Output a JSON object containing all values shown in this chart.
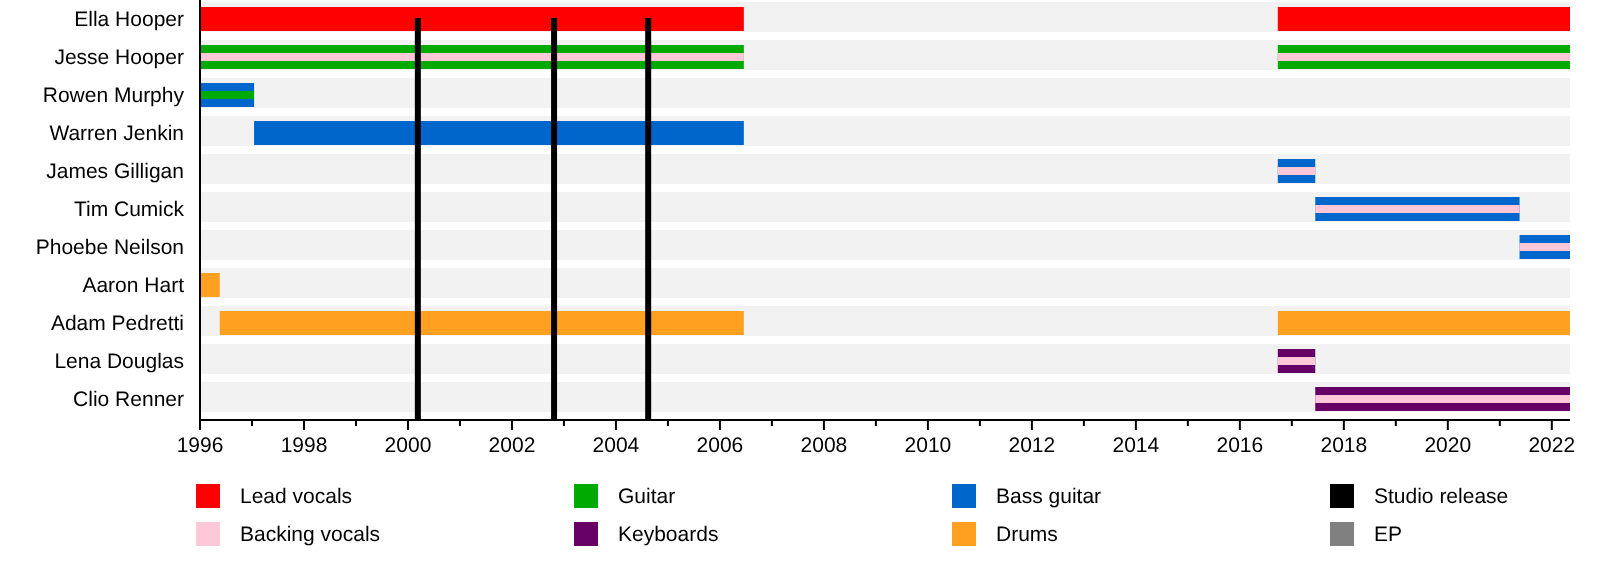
{
  "chart_data": {
    "type": "bar",
    "orientation": "horizontal",
    "categories": [
      "Ella Hooper",
      "Jesse Hooper",
      "Rowen Murphy",
      "Warren Jenkin",
      "James Gilligan",
      "Tim Cumick",
      "Phoebe Neilson",
      "Aaron Hart",
      "Adam Pedretti",
      "Lena Douglas",
      "Clio Renner"
    ],
    "series": [
      {
        "name": "Lead vocals",
        "color": "#ff0000",
        "base": [
          1996,
          null,
          null,
          null,
          null,
          null,
          null,
          null,
          null,
          null,
          null
        ],
        "values": [
          10.46,
          null,
          null,
          null,
          null,
          null,
          null,
          null,
          null,
          null,
          null
        ]
      },
      {
        "name": "Backing vocals",
        "color": "#ffc8d8",
        "base": [
          null,
          1996,
          null,
          null,
          2016.73,
          2017.45,
          2021.38,
          null,
          null,
          2016.73,
          2017.45
        ],
        "values": [
          null,
          10.46,
          null,
          null,
          0.72,
          3.93,
          0.97,
          null,
          null,
          0.72,
          4.9
        ]
      },
      {
        "name": "Guitar",
        "color": "#00aa00",
        "base": [
          null,
          1996,
          1996,
          null,
          null,
          null,
          null,
          null,
          null,
          null,
          null
        ],
        "values": [
          null,
          10.46,
          1.04,
          null,
          null,
          null,
          null,
          null,
          null,
          null,
          null
        ]
      },
      {
        "name": "Keyboards",
        "color": "#660066",
        "base": [
          null,
          null,
          null,
          null,
          null,
          null,
          null,
          null,
          null,
          2016.73,
          2017.45
        ],
        "values": [
          null,
          null,
          null,
          null,
          null,
          null,
          null,
          null,
          null,
          0.72,
          4.9
        ]
      },
      {
        "name": "Bass guitar",
        "color": "#0066cc",
        "base": [
          null,
          null,
          1996,
          1997.04,
          2016.73,
          2017.45,
          2021.38,
          null,
          null,
          null,
          null
        ],
        "values": [
          null,
          null,
          1.04,
          9.42,
          0.72,
          3.93,
          0.97,
          null,
          null,
          null,
          null
        ]
      },
      {
        "name": "Drums",
        "color": "#ffa020",
        "base": [
          null,
          null,
          null,
          null,
          null,
          null,
          null,
          1996,
          1996.38,
          null,
          null
        ],
        "values": [
          null,
          null,
          null,
          null,
          null,
          null,
          null,
          0.38,
          10.08,
          null,
          null
        ]
      },
      {
        "name": "EP",
        "color": "#808080",
        "base": [
          null,
          null,
          null,
          null,
          null,
          null,
          null,
          null,
          null,
          null,
          null
        ],
        "values": [
          null,
          null,
          null,
          null,
          null,
          null,
          null,
          null,
          null,
          null,
          null
        ]
      },
      {
        "color": "#ffc8d8",
        "base": [
          null,
          2016.73,
          null,
          null,
          null,
          null,
          null,
          null,
          null,
          null,
          null
        ],
        "values": [
          null,
          5.62,
          null,
          null,
          null,
          null,
          null,
          null,
          null,
          null,
          null
        ]
      },
      {
        "color": "#ff0000",
        "base": [
          2016.73,
          null,
          null,
          null,
          null,
          null,
          null,
          null,
          null,
          null,
          null
        ],
        "values": [
          5.62,
          null,
          null,
          null,
          null,
          null,
          null,
          null,
          null,
          null,
          null
        ]
      },
      {
        "color": "#00aa00",
        "base": [
          null,
          2016.73,
          null,
          null,
          null,
          null,
          null,
          null,
          null,
          null,
          null
        ],
        "values": [
          null,
          5.62,
          null,
          null,
          null,
          null,
          null,
          null,
          null,
          null,
          null
        ]
      },
      {
        "color": "#ffa020",
        "base": [
          null,
          null,
          null,
          null,
          null,
          null,
          null,
          null,
          2016.73,
          null,
          null
        ],
        "values": [
          null,
          null,
          null,
          null,
          null,
          null,
          null,
          null,
          5.62,
          null,
          null
        ]
      }
    ],
    "ref_lines": [
      {
        "axis": "x",
        "value": 2000.19,
        "label": "Studio release",
        "color": "#000000"
      },
      {
        "axis": "x",
        "value": 2002.81,
        "color": "#000000"
      },
      {
        "axis": "x",
        "value": 2004.62,
        "color": "#000000"
      }
    ],
    "xlim": [
      1996,
      2022.35
    ],
    "xticks": [
      1996,
      {
        "value": 1997,
        "label": null
      },
      1998,
      {
        "value": 1999,
        "label": null
      },
      2000,
      {
        "value": 2001,
        "label": null
      },
      2002,
      {
        "value": 2003,
        "label": null
      },
      2004,
      {
        "value": 2005,
        "label": null
      },
      2006,
      {
        "value": 2007,
        "label": null
      },
      2008,
      {
        "value": 2009,
        "label": null
      },
      2010,
      {
        "value": 2011,
        "label": null
      },
      2012,
      {
        "value": 2013,
        "label": null
      },
      2014,
      {
        "value": 2015,
        "label": null
      },
      2016,
      {
        "value": 2017,
        "label": null
      },
      2018,
      {
        "value": 2019,
        "label": null
      },
      2020,
      {
        "value": 2021,
        "label": null
      },
      2022
    ],
    "legend": "bottom"
  }
}
